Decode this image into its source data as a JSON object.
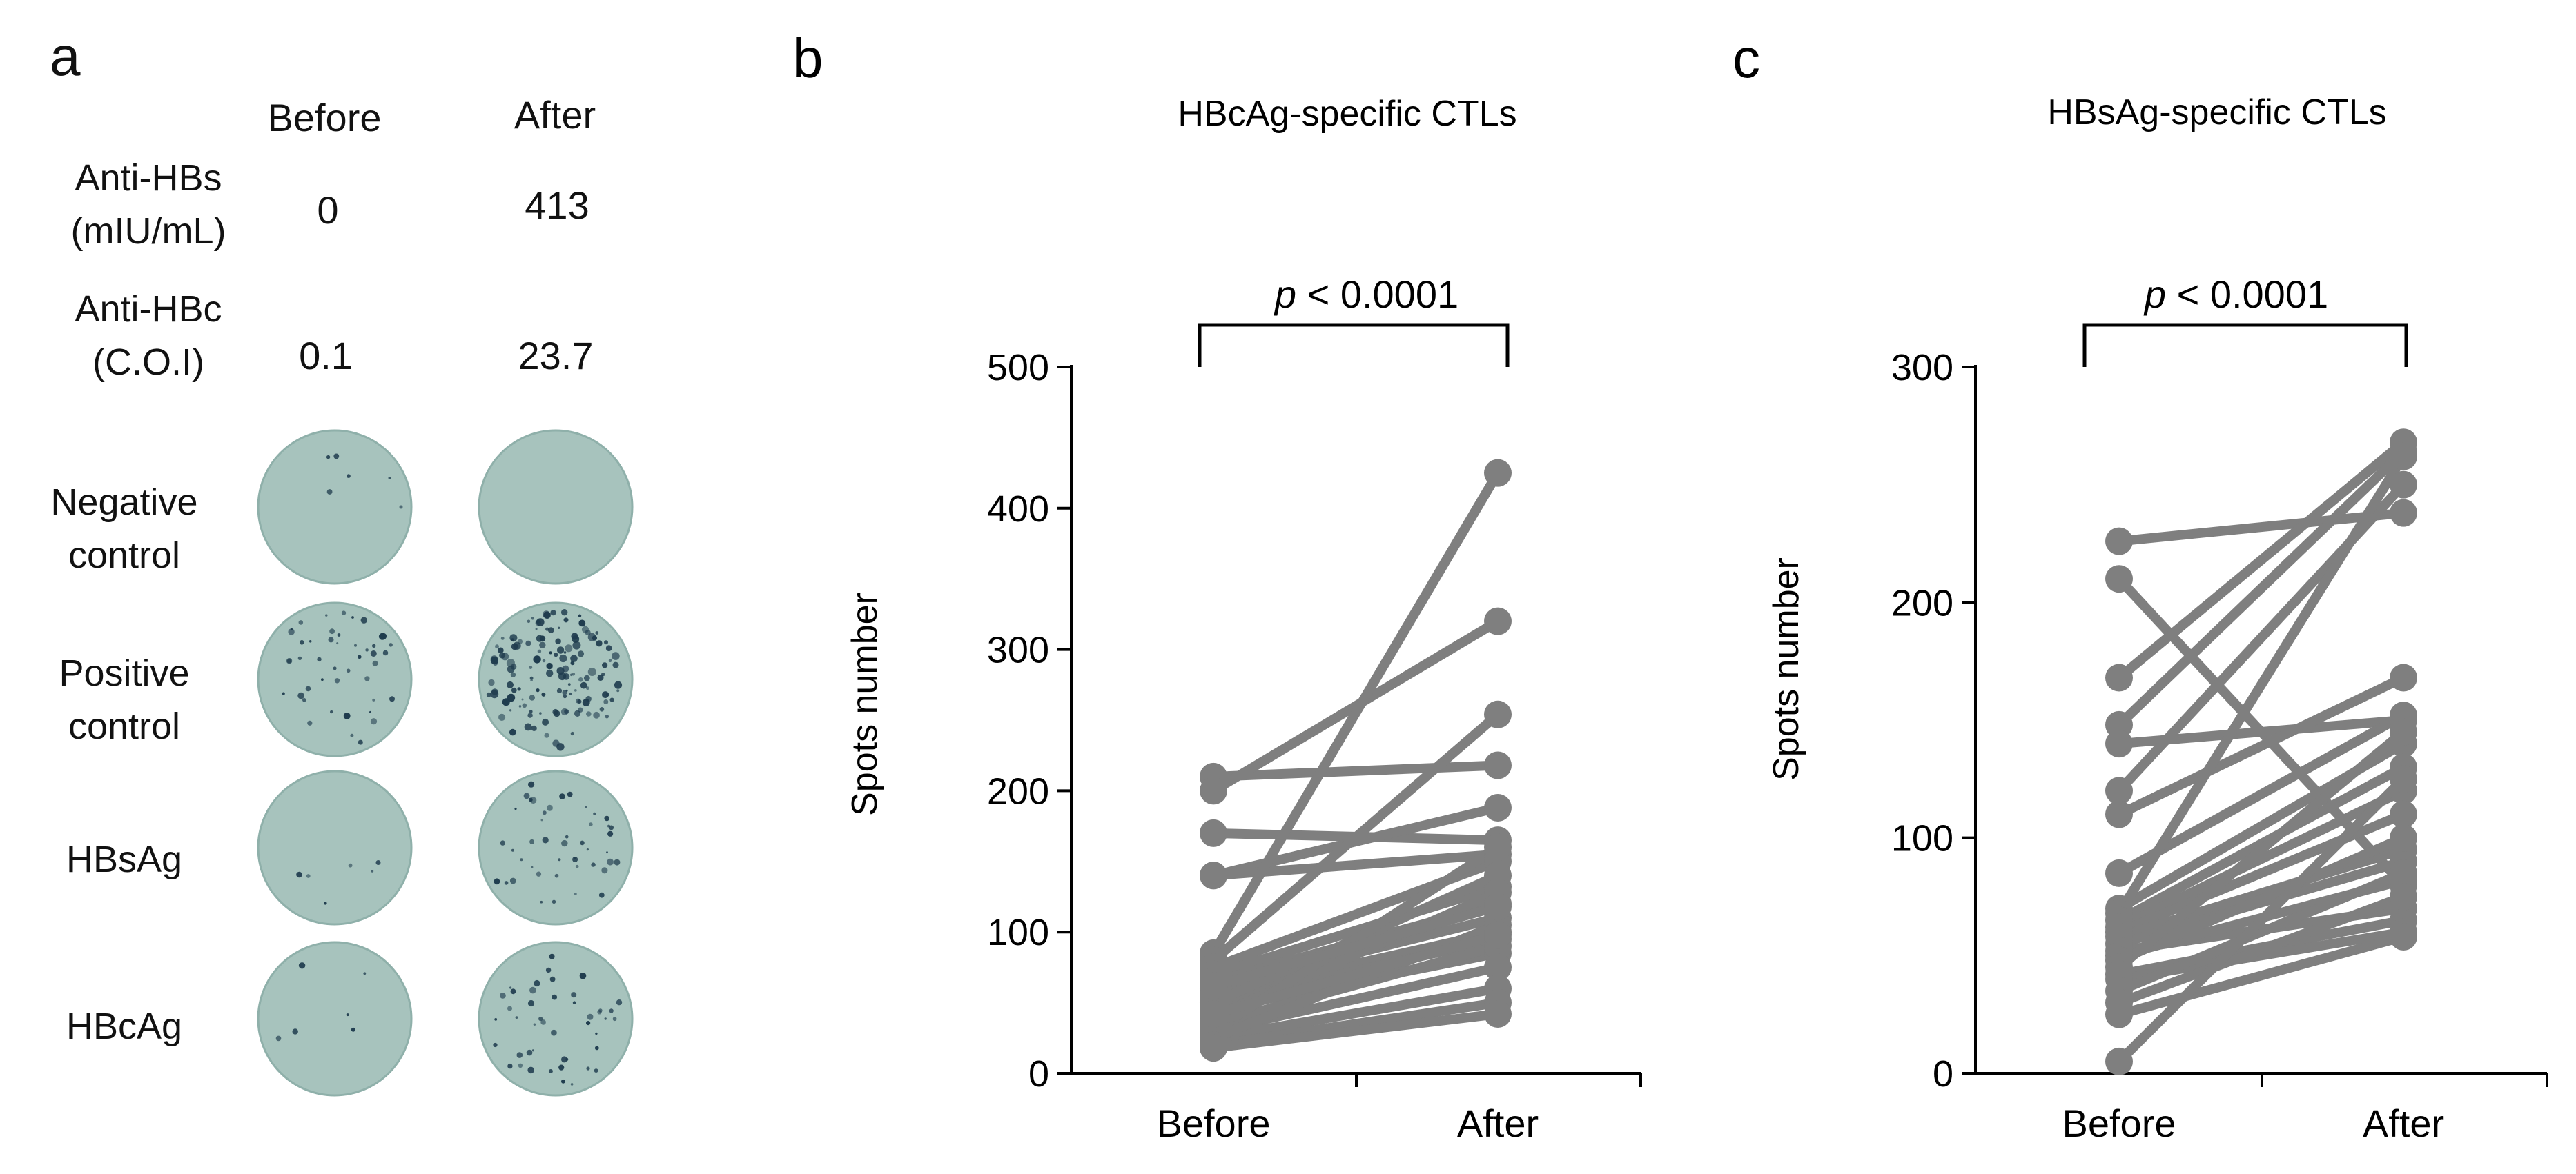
{
  "panel_a": {
    "letter": "a",
    "col_headers": [
      "Before",
      "After"
    ],
    "rows": [
      {
        "label_lines": [
          "Anti-HBs",
          "(mIU/mL)"
        ],
        "before": "0",
        "after": "413"
      },
      {
        "label_lines": [
          "Anti-HBc",
          "(C.O.I)"
        ],
        "before": "0.1",
        "after": "23.7"
      }
    ],
    "wells": [
      {
        "label_lines": [
          "Negative",
          "control"
        ],
        "before_spots": "sparse",
        "after_spots": "none"
      },
      {
        "label_lines": [
          "Positive",
          "control"
        ],
        "before_spots": "moderate",
        "after_spots": "dense"
      },
      {
        "label_lines": [
          "HBsAg"
        ],
        "before_spots": "sparse",
        "after_spots": "moderate"
      },
      {
        "label_lines": [
          "HBcAg"
        ],
        "before_spots": "sparse",
        "after_spots": "moderate"
      }
    ],
    "well_color": "#a7c3bd",
    "spot_color": "#1f3c4e"
  },
  "chart_data": [
    {
      "type": "line",
      "panel_letter": "b",
      "title": "HBcAg-specific CTLs",
      "ylabel": "Spots number",
      "xlabel": "",
      "categories": [
        "Before",
        "After"
      ],
      "ylim": [
        0,
        500
      ],
      "yticks": [
        0,
        100,
        200,
        300,
        400,
        500
      ],
      "annotation": {
        "italic": "p",
        "text": " < 0.0001"
      },
      "series_color": "#7f7f7f",
      "pairs": [
        [
          210,
          218
        ],
        [
          200,
          320
        ],
        [
          170,
          165
        ],
        [
          140,
          188
        ],
        [
          140,
          155
        ],
        [
          85,
          425
        ],
        [
          80,
          254
        ],
        [
          75,
          150
        ],
        [
          70,
          132
        ],
        [
          65,
          120
        ],
        [
          60,
          110
        ],
        [
          55,
          100
        ],
        [
          50,
          95
        ],
        [
          50,
          140
        ],
        [
          45,
          85
        ],
        [
          40,
          128
        ],
        [
          35,
          90
        ],
        [
          30,
          160
        ],
        [
          30,
          75
        ],
        [
          25,
          60
        ],
        [
          25,
          105
        ],
        [
          20,
          50
        ],
        [
          18,
          42
        ],
        [
          62,
          118
        ],
        [
          42,
          98
        ]
      ]
    },
    {
      "type": "line",
      "panel_letter": "c",
      "title": "HBsAg-specific CTLs",
      "ylabel": "Spots number",
      "xlabel": "",
      "categories": [
        "Before",
        "After"
      ],
      "ylim": [
        0,
        300
      ],
      "yticks": [
        0,
        100,
        200,
        300
      ],
      "annotation": {
        "italic": "p",
        "text": " < 0.0001"
      },
      "series_color": "#7f7f7f",
      "pairs": [
        [
          226,
          238
        ],
        [
          210,
          80
        ],
        [
          168,
          268
        ],
        [
          148,
          264
        ],
        [
          140,
          150
        ],
        [
          120,
          250
        ],
        [
          110,
          168
        ],
        [
          85,
          152
        ],
        [
          70,
          140
        ],
        [
          68,
          262
        ],
        [
          65,
          130
        ],
        [
          62,
          120
        ],
        [
          60,
          110
        ],
        [
          58,
          95
        ],
        [
          55,
          90
        ],
        [
          52,
          70
        ],
        [
          50,
          82
        ],
        [
          48,
          100
        ],
        [
          45,
          145
        ],
        [
          42,
          65
        ],
        [
          40,
          60
        ],
        [
          35,
          85
        ],
        [
          30,
          75
        ],
        [
          25,
          58
        ],
        [
          5,
          125
        ]
      ]
    }
  ]
}
